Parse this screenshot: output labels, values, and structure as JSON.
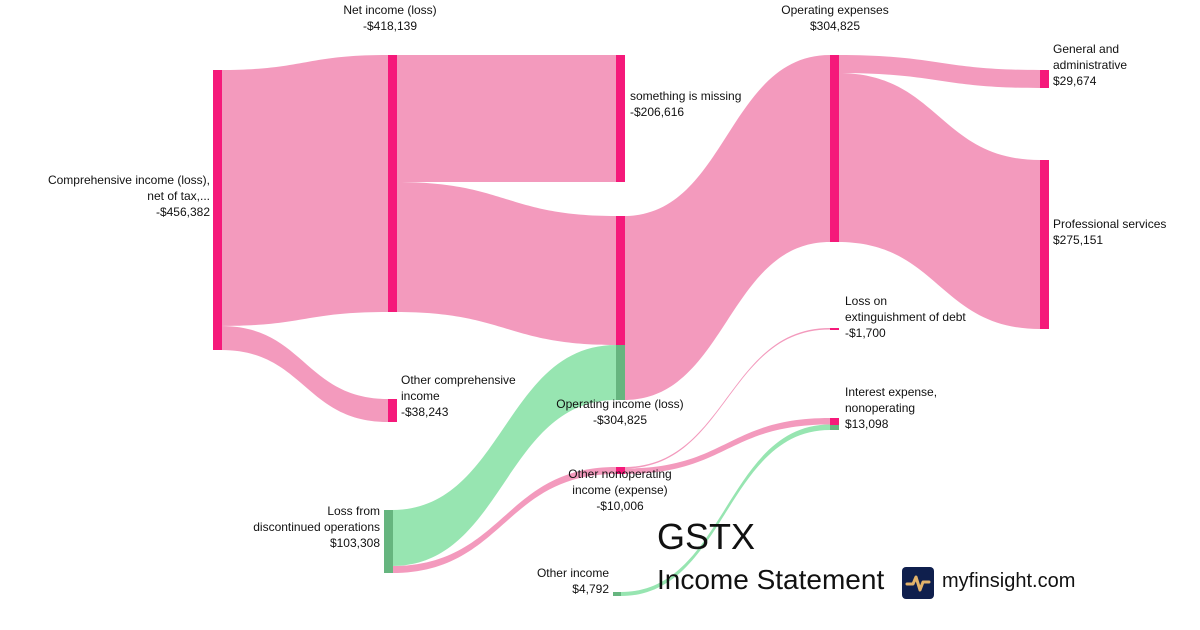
{
  "header": {
    "ticker": "GSTX",
    "subtitle": "Income Statement",
    "site": "myfinsight.com",
    "logo_icon": "pulse-icon"
  },
  "colors": {
    "node_negative": "#f5197a",
    "link_negative": "#f39abd",
    "node_positive": "#66b57f",
    "link_positive": "#97e5b1"
  },
  "chart_data": {
    "type": "sankey",
    "nodes": [
      {
        "id": "comprehensive",
        "label": "Comprehensive income (loss), net of tax,...",
        "label_lines": [
          "Comprehensive income (loss),",
          "net of tax,..."
        ],
        "value": "-$456,382"
      },
      {
        "id": "net_income",
        "label": "Net income (loss)",
        "value": "-$418,139"
      },
      {
        "id": "other_comprehensive",
        "label": "Other comprehensive income",
        "label_lines": [
          "Other comprehensive",
          "income"
        ],
        "value": "-$38,243"
      },
      {
        "id": "discontinued",
        "label": "Loss from discontinued operations",
        "label_lines": [
          "Loss from",
          "discontinued operations"
        ],
        "value": "$103,308"
      },
      {
        "id": "missing",
        "label": "something is missing",
        "value": "-$206,616"
      },
      {
        "id": "operating_income",
        "label": "Operating income (loss)",
        "value": "-$304,825"
      },
      {
        "id": "other_nonoperating",
        "label": "Other nonoperating income (expense)",
        "label_lines": [
          "Other nonoperating",
          "income (expense)"
        ],
        "value": "-$10,006"
      },
      {
        "id": "other_income",
        "label": "Other income",
        "value": "$4,792"
      },
      {
        "id": "opex",
        "label": "Operating expenses",
        "value": "$304,825"
      },
      {
        "id": "loss_extinguishment",
        "label": "Loss on extinguishment of debt",
        "label_lines": [
          "Loss on",
          "extinguishment of debt"
        ],
        "value": "-$1,700"
      },
      {
        "id": "interest",
        "label": "Interest expense, nonoperating",
        "label_lines": [
          "Interest expense,",
          "nonoperating"
        ],
        "value": "$13,098"
      },
      {
        "id": "ga",
        "label": "General and administrative",
        "label_lines": [
          "General and",
          "administrative"
        ],
        "value": "$29,674"
      },
      {
        "id": "professional",
        "label": "Professional services",
        "value": "$275,151"
      }
    ],
    "links": [
      {
        "source": "comprehensive",
        "target": "net_income",
        "value": 418139,
        "kind": "negative"
      },
      {
        "source": "comprehensive",
        "target": "other_comprehensive",
        "value": 38243,
        "kind": "negative"
      },
      {
        "source": "net_income",
        "target": "missing",
        "value": 206616,
        "kind": "negative"
      },
      {
        "source": "net_income",
        "target": "operating_income",
        "value": 211523,
        "kind": "negative"
      },
      {
        "source": "discontinued",
        "target": "operating_income",
        "value": 93302,
        "kind": "positive"
      },
      {
        "source": "discontinued",
        "target": "other_nonoperating",
        "value": 10006,
        "kind": "negative"
      },
      {
        "source": "operating_income",
        "target": "opex",
        "value": 304825,
        "kind": "negative"
      },
      {
        "source": "other_nonoperating",
        "target": "loss_extinguishment",
        "value": 1700,
        "kind": "negative"
      },
      {
        "source": "other_nonoperating",
        "target": "interest",
        "value": 8306,
        "kind": "negative"
      },
      {
        "source": "other_income",
        "target": "interest",
        "value": 4792,
        "kind": "positive"
      },
      {
        "source": "opex",
        "target": "ga",
        "value": 29674,
        "kind": "negative"
      },
      {
        "source": "opex",
        "target": "professional",
        "value": 275151,
        "kind": "negative"
      }
    ]
  }
}
